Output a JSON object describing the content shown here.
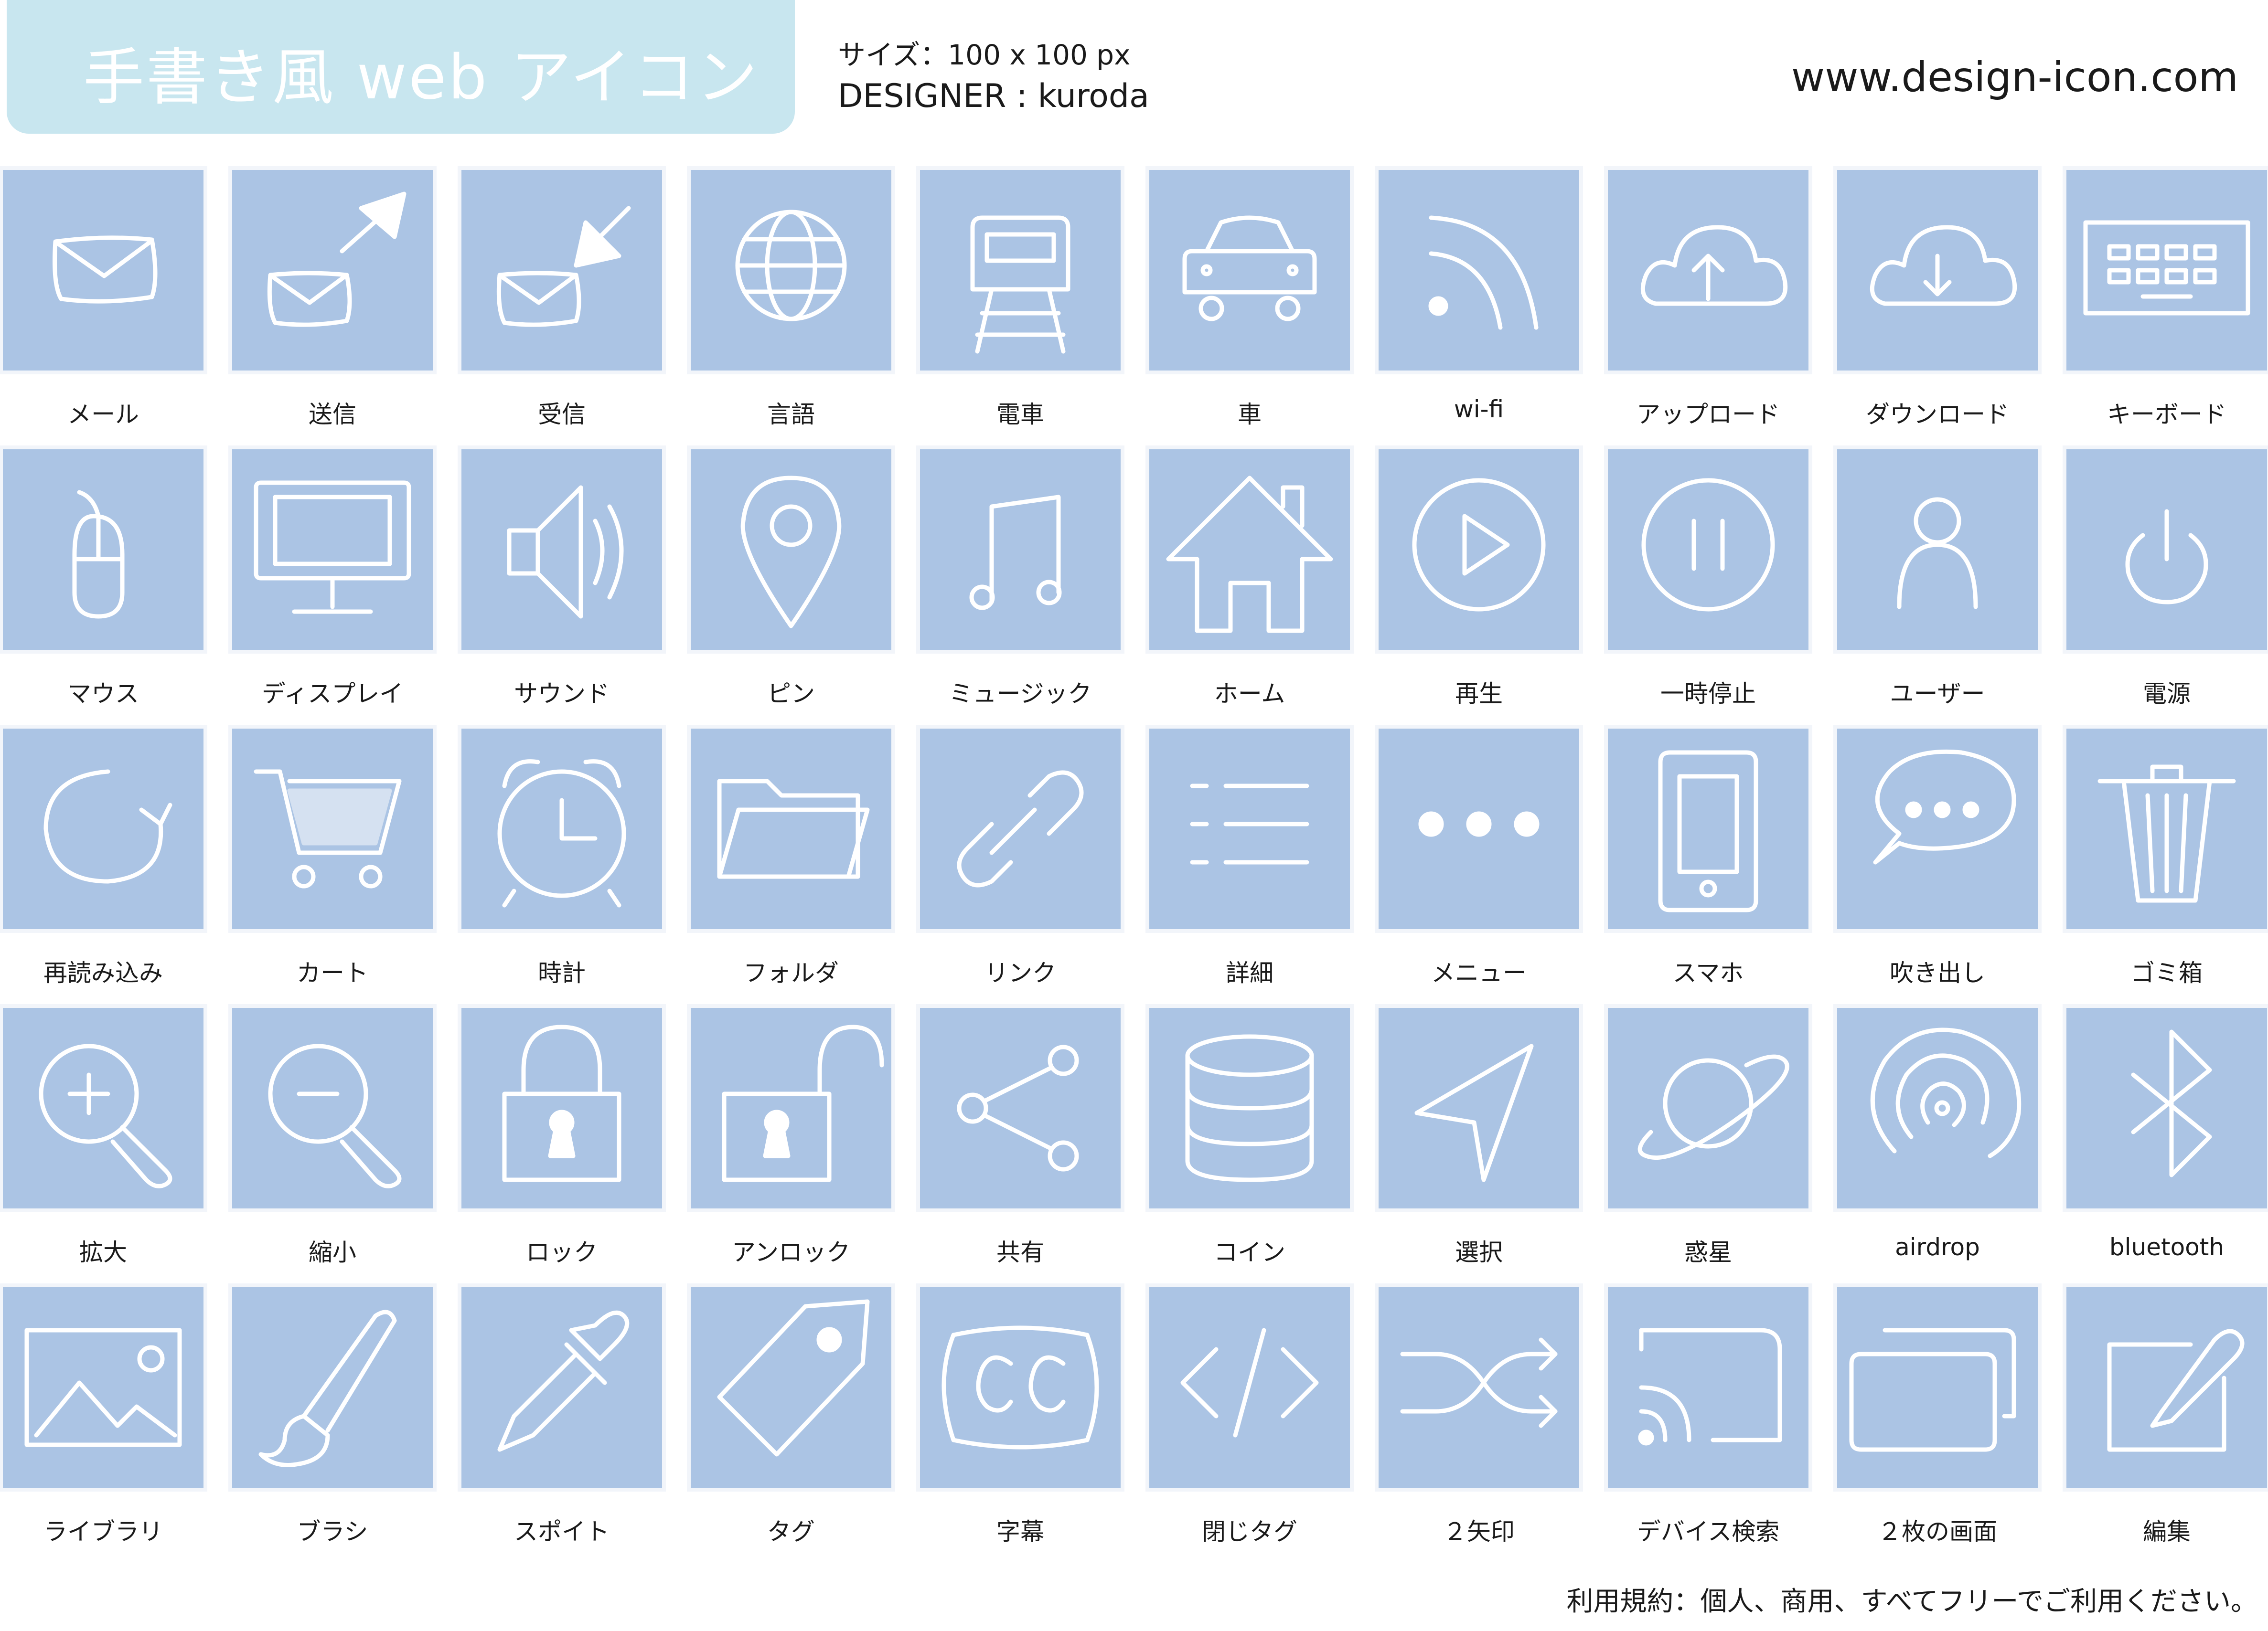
{
  "header": {
    "title": "手書き風 web アイコン",
    "spec": "サイズ：100 x 100 px",
    "designer": "DESIGNER : kuroda",
    "site": "www.design-icon.com"
  },
  "footer": {
    "terms": "利用規約：個人、商用、すべてフリーでご利用ください。"
  },
  "colors": {
    "tile": "#abc4e4",
    "banner": "#c8e6ef",
    "stroke": "#ffffff"
  },
  "icons": [
    {
      "label": "メール",
      "icon": "mail-icon"
    },
    {
      "label": "送信",
      "icon": "send-mail-icon"
    },
    {
      "label": "受信",
      "icon": "receive-mail-icon"
    },
    {
      "label": "言語",
      "icon": "globe-icon"
    },
    {
      "label": "電車",
      "icon": "train-icon"
    },
    {
      "label": "車",
      "icon": "car-icon"
    },
    {
      "label": "wi-fi",
      "icon": "wifi-icon"
    },
    {
      "label": "アップロード",
      "icon": "cloud-upload-icon"
    },
    {
      "label": "ダウンロード",
      "icon": "cloud-download-icon"
    },
    {
      "label": "キーボード",
      "icon": "keyboard-icon"
    },
    {
      "label": "マウス",
      "icon": "mouse-icon"
    },
    {
      "label": "ディスプレイ",
      "icon": "display-icon"
    },
    {
      "label": "サウンド",
      "icon": "speaker-icon"
    },
    {
      "label": "ピン",
      "icon": "map-pin-icon"
    },
    {
      "label": "ミュージック",
      "icon": "music-note-icon"
    },
    {
      "label": "ホーム",
      "icon": "home-icon"
    },
    {
      "label": "再生",
      "icon": "play-icon"
    },
    {
      "label": "一時停止",
      "icon": "pause-icon"
    },
    {
      "label": "ユーザー",
      "icon": "user-icon"
    },
    {
      "label": "電源",
      "icon": "power-icon"
    },
    {
      "label": "再読み込み",
      "icon": "reload-icon"
    },
    {
      "label": "カート",
      "icon": "cart-icon"
    },
    {
      "label": "時計",
      "icon": "alarm-clock-icon"
    },
    {
      "label": "フォルダ",
      "icon": "folder-icon"
    },
    {
      "label": "リンク",
      "icon": "link-icon"
    },
    {
      "label": "詳細",
      "icon": "list-icon"
    },
    {
      "label": "メニュー",
      "icon": "more-dots-icon"
    },
    {
      "label": "スマホ",
      "icon": "smartphone-icon"
    },
    {
      "label": "吹き出し",
      "icon": "speech-bubble-icon"
    },
    {
      "label": "ゴミ箱",
      "icon": "trash-icon"
    },
    {
      "label": "拡大",
      "icon": "zoom-in-icon"
    },
    {
      "label": "縮小",
      "icon": "zoom-out-icon"
    },
    {
      "label": "ロック",
      "icon": "lock-icon"
    },
    {
      "label": "アンロック",
      "icon": "unlock-icon"
    },
    {
      "label": "共有",
      "icon": "share-icon"
    },
    {
      "label": "コイン",
      "icon": "coin-stack-icon"
    },
    {
      "label": "選択",
      "icon": "cursor-arrow-icon"
    },
    {
      "label": "惑星",
      "icon": "planet-icon"
    },
    {
      "label": "airdrop",
      "icon": "airdrop-icon"
    },
    {
      "label": "bluetooth",
      "icon": "bluetooth-icon"
    },
    {
      "label": "ライブラリ",
      "icon": "image-icon"
    },
    {
      "label": "ブラシ",
      "icon": "brush-icon"
    },
    {
      "label": "スポイト",
      "icon": "dropper-icon"
    },
    {
      "label": "タグ",
      "icon": "tag-icon"
    },
    {
      "label": "字幕",
      "icon": "closed-caption-icon"
    },
    {
      "label": "閉じタグ",
      "icon": "code-icon"
    },
    {
      "label": "２矢印",
      "icon": "shuffle-icon"
    },
    {
      "label": "デバイス検索",
      "icon": "cast-icon"
    },
    {
      "label": "２枚の画面",
      "icon": "two-screens-icon"
    },
    {
      "label": "編集",
      "icon": "edit-icon"
    }
  ]
}
